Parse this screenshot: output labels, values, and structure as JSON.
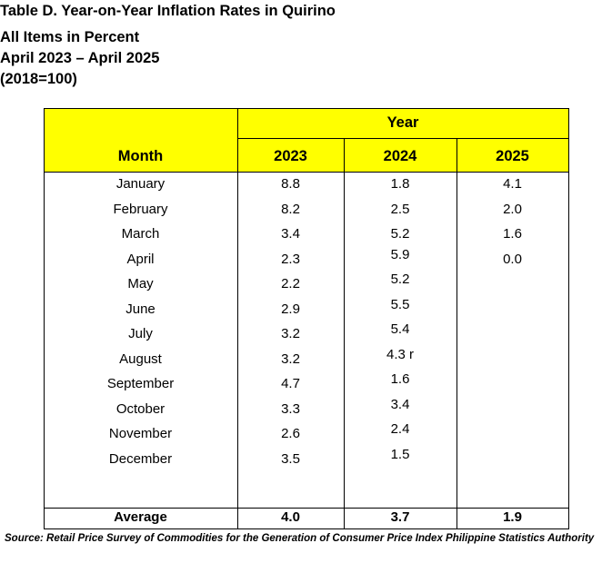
{
  "title": "Table D. Year-on-Year Inflation Rates in Quirino",
  "subtitle_1": "All Items in Percent",
  "subtitle_2": "April 2023 – April 2025",
  "subtitle_3": "(2018=100)",
  "table": {
    "group_header": "Year",
    "columns": [
      "Month",
      "2023",
      "2024",
      "2025"
    ],
    "rows": [
      [
        "January",
        "8.8",
        "1.8",
        "4.1"
      ],
      [
        "February",
        "8.2",
        "2.5",
        "2.0"
      ],
      [
        "March",
        "3.4",
        "5.2",
        "1.6"
      ],
      [
        "April",
        "2.3",
        "5.9",
        "0.0"
      ],
      [
        "May",
        "2.2",
        "5.2",
        ""
      ],
      [
        "June",
        "2.9",
        "5.5",
        ""
      ],
      [
        "July",
        "3.2",
        "5.4",
        ""
      ],
      [
        "August",
        "3.2",
        "4.3 r",
        ""
      ],
      [
        "September",
        "4.7",
        "1.6",
        ""
      ],
      [
        "October",
        "3.3",
        "3.4",
        ""
      ],
      [
        "November",
        "2.6",
        "2.4",
        ""
      ],
      [
        "December",
        "3.5",
        "1.5",
        ""
      ]
    ],
    "average": [
      "Average",
      "4.0",
      "3.7",
      "1.9"
    ]
  },
  "source": "Source: Retail Price Survey of Commodities for the Generation of Consumer Price Index Philippine Statistics Authority",
  "colors": {
    "header_fill": "#ffff00",
    "border": "#000000"
  }
}
